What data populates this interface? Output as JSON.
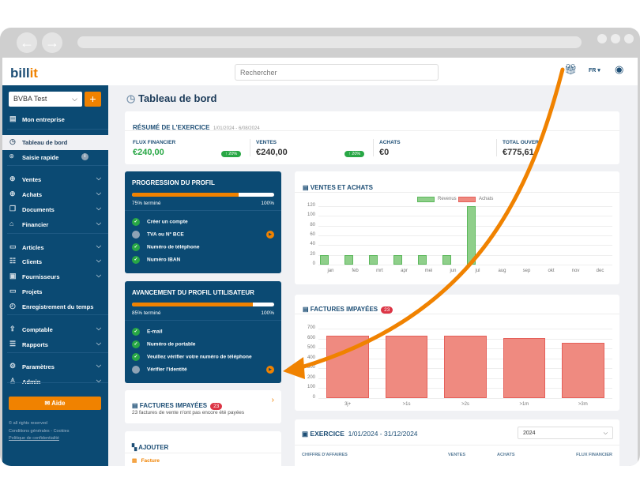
{
  "browser": {
    "back": "←",
    "forward": "→"
  },
  "header": {
    "logo_a": "bill",
    "logo_b": "it",
    "search_placeholder": "Rechercher",
    "lang": "FR ▾",
    "gift_icon": "gift-icon",
    "user_icon": "user-circle-icon"
  },
  "sidebar": {
    "company": "BVBA Test",
    "add": "+",
    "items": [
      {
        "label": "Mon entreprise",
        "icon": "▤"
      },
      {
        "label": "Tableau de bord",
        "icon": "◷"
      },
      {
        "label": "Saisie rapide",
        "icon": "⌾",
        "badge": "i"
      },
      {
        "label": "Ventes",
        "icon": "⊕",
        "chev": "⌵"
      },
      {
        "label": "Achats",
        "icon": "⊕",
        "chev": "⌵"
      },
      {
        "label": "Documents",
        "icon": "❐",
        "chev": "⌵"
      },
      {
        "label": "Financier",
        "icon": "⌂",
        "chev": "⌵"
      },
      {
        "label": "Articles",
        "icon": "▭",
        "chev": "⌵"
      },
      {
        "label": "Clients",
        "icon": "☷",
        "chev": "⌵"
      },
      {
        "label": "Fournisseurs",
        "icon": "▣",
        "chev": "⌵"
      },
      {
        "label": "Projets",
        "icon": "▭"
      },
      {
        "label": "Enregistrement du temps",
        "icon": "◴"
      },
      {
        "label": "Comptable",
        "icon": "⇪",
        "chev": "⌵"
      },
      {
        "label": "Rapports",
        "icon": "☰",
        "chev": "⌵"
      },
      {
        "label": "Paramètres",
        "icon": "⚙",
        "chev": "⌵"
      },
      {
        "label": "Admin",
        "icon": "♙",
        "chev": "⌵"
      }
    ],
    "help": "Aide",
    "rights": "© all rights reserved",
    "conditions": "Conditions générales",
    "dash": " - ",
    "cookies": "Cookies",
    "privacy": "Politique de confidentialité"
  },
  "page": {
    "title": "Tableau de bord"
  },
  "summary": {
    "title": "RÉSUMÉ DE L'EXERCICE",
    "period": "1/01/2024 - 6/08/2024",
    "stats": [
      {
        "label": "FLUX FINANCIER",
        "value": "€240,00",
        "badge": "↑ 20%"
      },
      {
        "label": "VENTES",
        "value": "€240,00",
        "badge": "↑ 20%"
      },
      {
        "label": "ACHATS",
        "value": "€0"
      },
      {
        "label": "TOTAL OUVERT",
        "value": "€775,61"
      }
    ]
  },
  "profile": {
    "title": "PROGRESSION DU PROFIL",
    "progress": 75,
    "done": "75% terminé",
    "max": "100%",
    "steps": [
      {
        "label": "Créer un compte",
        "done": true
      },
      {
        "label": "TVA ou N° BCE",
        "done": false
      },
      {
        "label": "Numéro de téléphone",
        "done": true
      },
      {
        "label": "Numéro IBAN",
        "done": true
      }
    ]
  },
  "user_profile": {
    "title": "AVANCEMENT DU PROFIL UTILISATEUR",
    "progress": 85,
    "done": "85% terminé",
    "max": "100%",
    "steps": [
      {
        "label": "E-mail",
        "done": true
      },
      {
        "label": "Numéro de portable",
        "done": true
      },
      {
        "label": "Veuillez vérifier votre numéro de téléphone",
        "done": true
      },
      {
        "label": "Vérifier l'identité",
        "done": false
      }
    ]
  },
  "unpaid_card": {
    "title": "FACTURES IMPAYÉES",
    "count": "23",
    "text": "23 factures de vente n'ont pas encore été payées"
  },
  "add_card": {
    "title": "AJOUTER",
    "item": "Facture"
  },
  "exercise": {
    "title": "EXERCICE",
    "period": "1/01/2024 - 31/12/2024",
    "year": "2024",
    "cols": [
      "CHIFFRE D'AFFAIRES",
      "VENTES",
      "ACHATS",
      "FLUX FINANCIER"
    ]
  },
  "colors": {
    "navy": "#0b4a73",
    "orange": "#f08200",
    "green": "#28a745",
    "red": "#dc3545"
  },
  "chart_data": [
    {
      "type": "bar",
      "title": "VENTES ET ACHATS",
      "categories": [
        "jan",
        "feb",
        "mrt",
        "apr",
        "mei",
        "jun",
        "jul",
        "aug",
        "sep",
        "okt",
        "nov",
        "dec"
      ],
      "series": [
        {
          "name": "Revenus",
          "color": "#8fcf8a",
          "values": [
            20,
            20,
            20,
            20,
            20,
            20,
            120,
            0,
            0,
            0,
            0,
            0
          ]
        },
        {
          "name": "Achats",
          "color": "#ef8a80",
          "values": [
            0,
            0,
            0,
            0,
            0,
            0,
            0,
            0,
            0,
            0,
            0,
            0
          ]
        }
      ],
      "ylim": [
        0,
        120
      ],
      "yticks": [
        0,
        20,
        40,
        60,
        80,
        100,
        120
      ],
      "legend": "top",
      "grid": true
    },
    {
      "type": "bar",
      "title": "FACTURES IMPAYÉES",
      "badge": "23",
      "categories": [
        "3j+",
        ">1s",
        ">2s",
        ">1m",
        ">3m"
      ],
      "values": [
        630,
        630,
        630,
        605,
        555
      ],
      "ylim": [
        0,
        700
      ],
      "yticks": [
        0,
        100,
        200,
        300,
        400,
        500,
        600,
        700
      ],
      "grid": true,
      "color": "#ef8a80"
    }
  ]
}
